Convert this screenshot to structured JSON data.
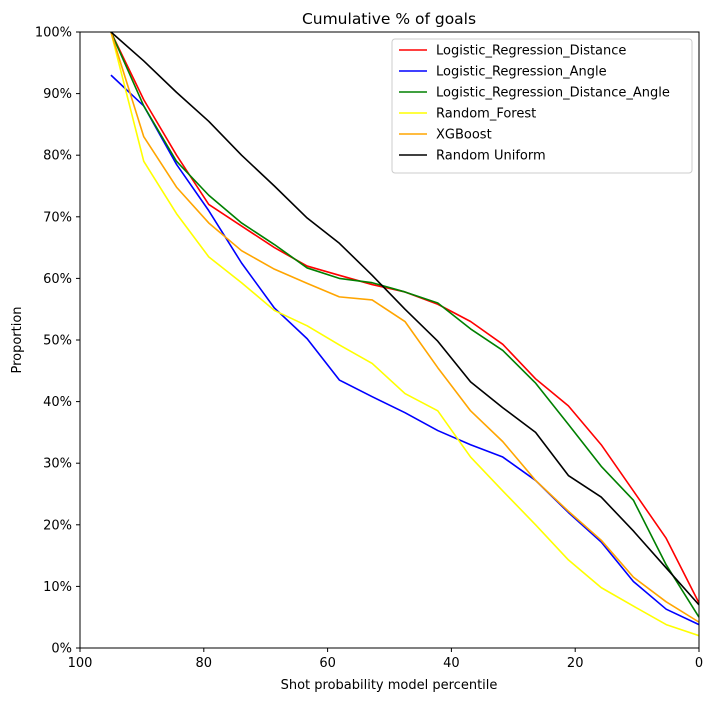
{
  "chart_data": {
    "type": "line",
    "title": "Cumulative % of goals",
    "xlabel": "Shot probability model percentile",
    "ylabel": "Proportion",
    "xlim": [
      100,
      0
    ],
    "ylim": [
      0,
      1
    ],
    "x_ticks": [
      100,
      80,
      60,
      40,
      20,
      0
    ],
    "x_tick_labels": [
      "100",
      "80",
      "60",
      "40",
      "20",
      "0"
    ],
    "y_ticks": [
      0,
      0.1,
      0.2,
      0.3,
      0.4,
      0.5,
      0.6,
      0.7,
      0.8,
      0.9,
      1.0
    ],
    "y_tick_labels": [
      "0%",
      "10%",
      "20%",
      "30%",
      "40%",
      "50%",
      "60%",
      "70%",
      "80%",
      "90%",
      "100%"
    ],
    "grid": false,
    "legend_position": "top-right",
    "x": [
      95,
      89.7,
      84.4,
      79.2,
      73.9,
      68.6,
      63.3,
      58.1,
      52.8,
      47.5,
      42.2,
      36.9,
      31.7,
      26.4,
      21.1,
      15.8,
      10.6,
      5.3,
      0
    ],
    "series": [
      {
        "name": "Logistic_Regression_Distance",
        "color": "#ff0000",
        "values": [
          1.0,
          0.89,
          0.8,
          0.72,
          0.685,
          0.65,
          0.62,
          0.605,
          0.59,
          0.578,
          0.558,
          0.53,
          0.493,
          0.437,
          0.393,
          0.33,
          0.255,
          0.178,
          0.073
        ]
      },
      {
        "name": "Logistic_Regression_Angle",
        "color": "#0000ff",
        "values": [
          0.93,
          0.88,
          0.785,
          0.71,
          0.625,
          0.552,
          0.502,
          0.435,
          0.408,
          0.382,
          0.353,
          0.33,
          0.31,
          0.272,
          0.22,
          0.172,
          0.108,
          0.063,
          0.038
        ]
      },
      {
        "name": "Logistic_Regression_Distance_Angle",
        "color": "#008000",
        "values": [
          1.0,
          0.88,
          0.79,
          0.735,
          0.69,
          0.655,
          0.617,
          0.6,
          0.593,
          0.578,
          0.56,
          0.518,
          0.483,
          0.43,
          0.363,
          0.295,
          0.24,
          0.135,
          0.05
        ]
      },
      {
        "name": "Random_Forest",
        "color": "#ffff00",
        "values": [
          1.0,
          0.79,
          0.705,
          0.635,
          0.593,
          0.548,
          0.523,
          0.492,
          0.462,
          0.413,
          0.385,
          0.31,
          0.255,
          0.2,
          0.143,
          0.098,
          0.068,
          0.038,
          0.02
        ]
      },
      {
        "name": "XGBoost",
        "color": "#ffa500",
        "values": [
          1.0,
          0.83,
          0.748,
          0.69,
          0.645,
          0.615,
          0.592,
          0.57,
          0.565,
          0.53,
          0.455,
          0.385,
          0.335,
          0.272,
          0.222,
          0.175,
          0.115,
          0.075,
          0.042
        ]
      },
      {
        "name": "Random Uniform",
        "color": "#000000",
        "values": [
          1.0,
          0.953,
          0.902,
          0.855,
          0.8,
          0.75,
          0.698,
          0.657,
          0.605,
          0.55,
          0.498,
          0.432,
          0.39,
          0.35,
          0.28,
          0.245,
          0.19,
          0.13,
          0.07
        ]
      }
    ]
  }
}
